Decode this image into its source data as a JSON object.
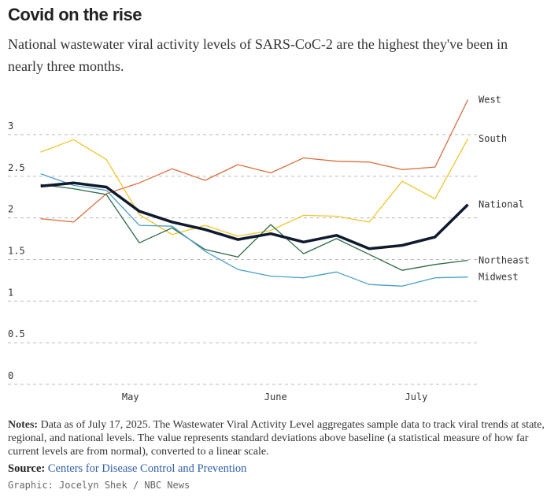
{
  "chart_data": {
    "type": "line",
    "title": "Covid on the rise",
    "subtitle": "National wastewater viral activity levels of SARS-CoC-2 are the highest they've been in nearly three months.",
    "x": [
      0,
      1,
      2,
      3,
      4,
      5,
      6,
      7,
      8,
      9,
      10,
      11,
      12,
      13
    ],
    "xlim": [
      -1,
      13.3
    ],
    "xticks": [
      {
        "value": 2.73,
        "label": "May"
      },
      {
        "value": 7.15,
        "label": "June"
      },
      {
        "value": 11.43,
        "label": "July"
      }
    ],
    "ylim": [
      0,
      3.6
    ],
    "yticks": [
      0,
      0.5,
      1,
      1.5,
      2,
      2.5,
      3
    ],
    "grid": true,
    "series": [
      {
        "name": "West",
        "color": "#d9703f",
        "width": 1.3,
        "values": [
          1.99,
          1.95,
          2.29,
          2.42,
          2.59,
          2.45,
          2.64,
          2.54,
          2.72,
          2.68,
          2.67,
          2.58,
          2.61,
          3.42
        ]
      },
      {
        "name": "South",
        "color": "#eec52a",
        "width": 1.3,
        "values": [
          2.79,
          2.94,
          2.7,
          2.04,
          1.8,
          1.91,
          1.78,
          1.85,
          2.03,
          2.02,
          1.95,
          2.44,
          2.23,
          2.95
        ]
      },
      {
        "name": "Northeast",
        "color": "#2e6b47",
        "width": 1.3,
        "values": [
          2.4,
          2.35,
          2.28,
          1.7,
          1.88,
          1.62,
          1.53,
          1.92,
          1.57,
          1.75,
          1.56,
          1.37,
          1.44,
          1.49
        ]
      },
      {
        "name": "Midwest",
        "color": "#4aa0c8",
        "width": 1.3,
        "values": [
          2.53,
          2.39,
          2.33,
          1.91,
          1.9,
          1.6,
          1.38,
          1.3,
          1.28,
          1.35,
          1.2,
          1.18,
          1.28,
          1.29
        ]
      },
      {
        "name": "National",
        "color": "#0f1a2e",
        "width": 3.5,
        "values": [
          2.38,
          2.42,
          2.37,
          2.08,
          1.95,
          1.86,
          1.74,
          1.81,
          1.71,
          1.79,
          1.63,
          1.67,
          1.77,
          2.16
        ]
      }
    ]
  },
  "notes_label": "Notes:",
  "notes": "Data as of July 17, 2025. The Wastewater Viral Activity Level aggregates sample data to track viral trends at state, regional, and national levels. The value represents standard deviations above baseline (a statistical measure of how far current levels are from normal), converted to a linear scale.",
  "source_label": "Source:",
  "source": "Centers for Disease Control and Prevention",
  "credit": "Graphic: Jocelyn Shek / NBC News"
}
